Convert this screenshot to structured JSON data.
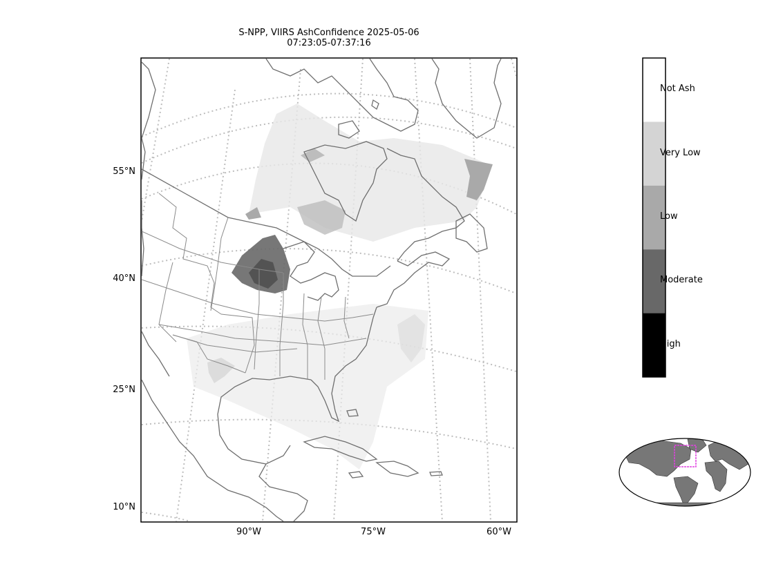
{
  "title": {
    "line1": "S-NPP, VIIRS AshConfidence 2025-05-06",
    "line2": "07:23:05-07:37:16"
  },
  "latitude_labels": [
    "55°N",
    "40°N",
    "25°N",
    "10°N"
  ],
  "longitude_labels": [
    "90°W",
    "75°W",
    "60°W"
  ],
  "colorbar": {
    "categories": [
      {
        "label": "Not Ash",
        "color": "#ffffff"
      },
      {
        "label": "Very Low",
        "color": "#d4d4d4"
      },
      {
        "label": "Low",
        "color": "#a9a9a9"
      },
      {
        "label": "Moderate",
        "color": "#686868"
      },
      {
        "label": "High",
        "color": "#000000"
      }
    ]
  },
  "colors": {
    "coastline": "#6e6e6e",
    "gridline": "#bdbdbd",
    "inset_land": "#777777",
    "inset_extent_box": "#e040e0"
  }
}
